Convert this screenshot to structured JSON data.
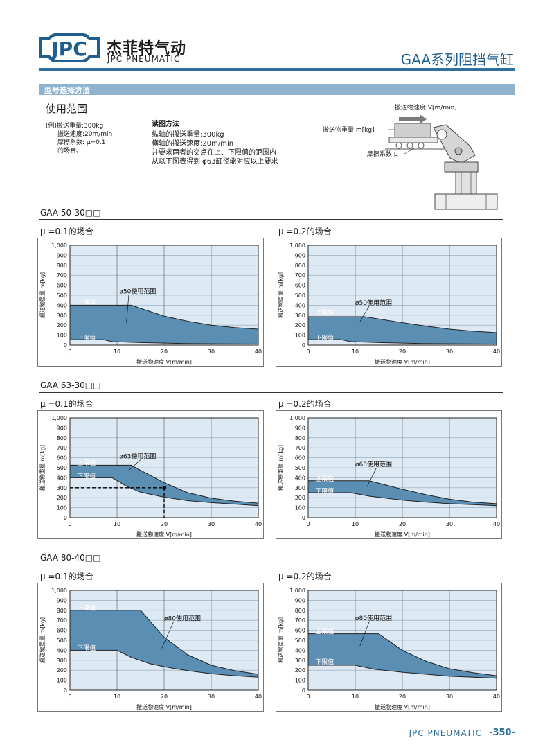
{
  "header": {
    "logo_text": "JPC",
    "brand_cn": "杰菲特气动",
    "brand_en": "JPC PNEUMATIC",
    "product_title": "GAA系列阻挡气缸"
  },
  "section": {
    "title": "型号选择方法",
    "subtitle": "使用范围",
    "example": [
      "(例)搬送重量:300kg",
      "搬送速度:20m/min",
      "摩擦系数: μ=0.1",
      "的场合。"
    ],
    "reading_title": "读图方法",
    "reading_lines": [
      "纵轴的搬送重量:300kg",
      "横轴的搬送速度:20m/min",
      "并要求两者的交点在上、下限值的范围内",
      "从以下图表得到 φ63缸径能对应以上要求"
    ],
    "diagram": {
      "speed_label": "搬送物速度 V[m/min]",
      "weight_label": "搬送物重量 m[kg]",
      "friction_label": "摩擦系数 μ"
    }
  },
  "colors": {
    "band": "#5b8eb3",
    "band_stroke": "#1f1f1f",
    "plot_bg": "#dde9f3",
    "grid": "#8ea6bb",
    "accent": "#2f6f9e"
  },
  "common": {
    "upper_label": "上限值",
    "lower_label": "下限值",
    "xlabel": "搬送物速度 V[m/min]",
    "ylabel": "搬送物重量 m[kg]",
    "yticks": [
      "0",
      "100",
      "200",
      "300",
      "400",
      "500",
      "600",
      "700",
      "800",
      "900",
      "1,000"
    ],
    "xticks": [
      "0",
      "10",
      "20",
      "30",
      "40"
    ]
  },
  "models": [
    {
      "title": "GAA 50-30□□",
      "cases": [
        "μ =0.1的场合",
        "μ =0.2的场合"
      ]
    },
    {
      "title": "GAA 63-30□□",
      "cases": [
        "μ =0.1的场合",
        "μ =0.2的场合"
      ]
    },
    {
      "title": "GAA 80-40□□",
      "cases": [
        "μ =0.1的场合",
        "μ =0.2的场合"
      ]
    }
  ],
  "chart_data": [
    {
      "type": "area",
      "model": "GAA 50-30□□",
      "case": "μ =0.1的场合",
      "range_label": "ø50使用范围",
      "xlim": [
        0,
        40
      ],
      "ylim": [
        0,
        1000
      ],
      "grid": true,
      "upper": [
        [
          0,
          400
        ],
        [
          13,
          400
        ],
        [
          20,
          290
        ],
        [
          25,
          240
        ],
        [
          30,
          200
        ],
        [
          35,
          175
        ],
        [
          40,
          160
        ]
      ],
      "lower": [
        [
          0,
          55
        ],
        [
          7,
          55
        ],
        [
          9,
          35
        ],
        [
          15,
          25
        ],
        [
          25,
          15
        ],
        [
          40,
          10
        ]
      ],
      "upper_label_at": [
        1.5,
        440
      ],
      "lower_label_at": [
        1.5,
        80
      ],
      "range_label_at": [
        10.5,
        545
      ],
      "leader": [
        [
          12.5,
          505
        ],
        [
          12,
          225
        ]
      ]
    },
    {
      "type": "area",
      "model": "GAA 50-30□□",
      "case": "μ =0.2的场合",
      "range_label": "ø50使用范围",
      "xlim": [
        0,
        40
      ],
      "ylim": [
        0,
        1000
      ],
      "grid": true,
      "upper": [
        [
          0,
          285
        ],
        [
          12,
          285
        ],
        [
          18,
          240
        ],
        [
          25,
          190
        ],
        [
          30,
          160
        ],
        [
          35,
          140
        ],
        [
          40,
          125
        ]
      ],
      "lower": [
        [
          0,
          55
        ],
        [
          7,
          55
        ],
        [
          9,
          35
        ],
        [
          15,
          25
        ],
        [
          25,
          15
        ],
        [
          40,
          10
        ]
      ],
      "upper_label_at": [
        1.5,
        335
      ],
      "lower_label_at": [
        1.5,
        80
      ],
      "range_label_at": [
        10,
        430
      ],
      "leader": [
        [
          13,
          395
        ],
        [
          11,
          235
        ]
      ]
    },
    {
      "type": "area",
      "model": "GAA 63-30□□",
      "case": "μ =0.1的场合",
      "range_label": "ø63使用范围",
      "xlim": [
        0,
        40
      ],
      "ylim": [
        0,
        1000
      ],
      "grid": true,
      "upper": [
        [
          0,
          525
        ],
        [
          13,
          525
        ],
        [
          20,
          350
        ],
        [
          25,
          250
        ],
        [
          30,
          195
        ],
        [
          35,
          165
        ],
        [
          40,
          145
        ]
      ],
      "lower": [
        [
          0,
          400
        ],
        [
          9,
          400
        ],
        [
          12,
          315
        ],
        [
          15,
          255
        ],
        [
          20,
          205
        ],
        [
          25,
          170
        ],
        [
          30,
          150
        ],
        [
          35,
          135
        ],
        [
          40,
          120
        ]
      ],
      "upper_label_at": [
        1.5,
        555
      ],
      "lower_label_at": [
        1.5,
        420
      ],
      "range_label_at": [
        10.5,
        620
      ],
      "leader": [
        [
          15,
          580
        ],
        [
          12.5,
          475
        ]
      ],
      "example_point": [
        20,
        300
      ]
    },
    {
      "type": "area",
      "model": "GAA 63-30□□",
      "case": "μ =0.2的场合",
      "range_label": "ø63使用范围",
      "xlim": [
        0,
        40
      ],
      "ylim": [
        0,
        1000
      ],
      "grid": true,
      "upper": [
        [
          0,
          370
        ],
        [
          13,
          370
        ],
        [
          20,
          285
        ],
        [
          25,
          230
        ],
        [
          30,
          185
        ],
        [
          35,
          155
        ],
        [
          40,
          140
        ]
      ],
      "lower": [
        [
          0,
          250
        ],
        [
          9,
          250
        ],
        [
          13,
          215
        ],
        [
          20,
          175
        ],
        [
          25,
          155
        ],
        [
          30,
          140
        ],
        [
          35,
          130
        ],
        [
          40,
          120
        ]
      ],
      "upper_label_at": [
        1.5,
        395
      ],
      "lower_label_at": [
        1.5,
        275
      ],
      "range_label_at": [
        10,
        540
      ],
      "leader": [
        [
          14.5,
          500
        ],
        [
          12.5,
          310
        ]
      ]
    },
    {
      "type": "area",
      "model": "GAA 80-40□□",
      "case": "μ =0.1的场合",
      "range_label": "ø80使用范围",
      "xlim": [
        0,
        40
      ],
      "ylim": [
        0,
        1000
      ],
      "grid": true,
      "upper": [
        [
          0,
          800
        ],
        [
          15,
          800
        ],
        [
          20,
          530
        ],
        [
          25,
          355
        ],
        [
          30,
          250
        ],
        [
          35,
          195
        ],
        [
          40,
          160
        ]
      ],
      "lower": [
        [
          0,
          400
        ],
        [
          10,
          400
        ],
        [
          13,
          330
        ],
        [
          17,
          265
        ],
        [
          20,
          235
        ],
        [
          25,
          195
        ],
        [
          30,
          165
        ],
        [
          35,
          145
        ],
        [
          40,
          130
        ]
      ],
      "upper_label_at": [
        1.5,
        830
      ],
      "lower_label_at": [
        1.5,
        430
      ],
      "range_label_at": [
        20,
        725
      ],
      "leader": [
        [
          22,
          685
        ],
        [
          19.5,
          420
        ]
      ]
    },
    {
      "type": "area",
      "model": "GAA 80-40□□",
      "case": "μ =0.2的场合",
      "range_label": "ø80使用范围",
      "xlim": [
        0,
        40
      ],
      "ylim": [
        0,
        1000
      ],
      "grid": true,
      "upper": [
        [
          0,
          565
        ],
        [
          15,
          565
        ],
        [
          20,
          400
        ],
        [
          25,
          290
        ],
        [
          30,
          215
        ],
        [
          35,
          175
        ],
        [
          40,
          145
        ]
      ],
      "lower": [
        [
          0,
          250
        ],
        [
          10,
          250
        ],
        [
          14,
          210
        ],
        [
          20,
          180
        ],
        [
          25,
          160
        ],
        [
          30,
          140
        ],
        [
          35,
          130
        ],
        [
          40,
          120
        ]
      ],
      "upper_label_at": [
        1.5,
        595
      ],
      "lower_label_at": [
        1.5,
        290
      ],
      "range_label_at": [
        10,
        730
      ],
      "leader": [
        [
          13,
          690
        ],
        [
          11,
          445
        ]
      ]
    }
  ],
  "footer": {
    "brand": "JPC PNEUMATIC",
    "page": "-350-"
  }
}
